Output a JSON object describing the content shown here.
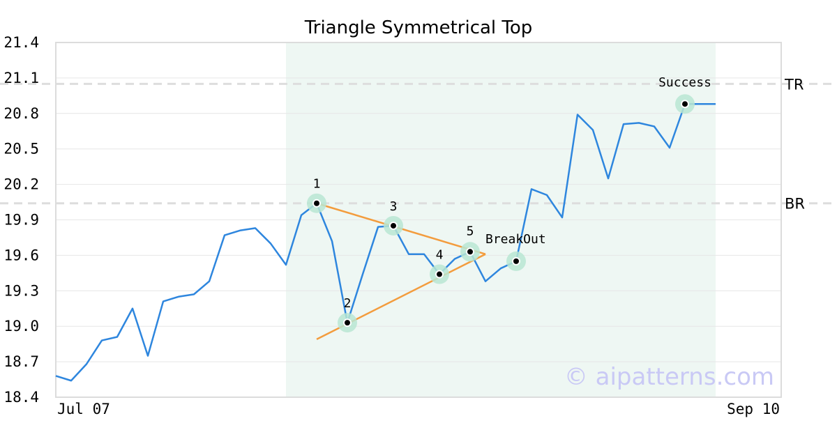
{
  "chart_data": {
    "type": "line",
    "title": "Triangle Symmetrical Top",
    "xlabel": "",
    "ylabel": "",
    "x_tick_labels": [
      "Jul 07",
      "Sep 10"
    ],
    "ylim": [
      18.4,
      21.4
    ],
    "yticks": [
      18.4,
      18.7,
      19.0,
      19.3,
      19.6,
      19.9,
      20.2,
      20.5,
      20.8,
      21.1,
      21.4
    ],
    "grid": true,
    "series": [
      {
        "values": [
          18.58,
          18.54,
          18.68,
          18.88,
          18.91,
          19.15,
          18.75,
          19.21,
          19.25,
          19.27,
          19.38,
          19.77,
          19.81,
          19.83,
          19.7,
          19.52,
          19.94,
          20.04,
          19.72,
          19.03,
          19.44,
          19.84,
          19.85,
          19.61,
          19.61,
          19.44,
          19.57,
          19.63,
          19.38,
          19.49,
          19.55,
          20.16,
          20.11,
          19.92,
          20.79,
          20.66,
          20.25,
          20.71,
          20.72,
          20.69,
          20.51,
          20.88,
          20.88,
          20.88
        ],
        "color": "#2e86de"
      }
    ],
    "shaded_range": {
      "from_index": 15,
      "to_index": 43,
      "color": "#eef7f3"
    },
    "levels": [
      {
        "label": "TR",
        "value": 21.05
      },
      {
        "label": "BR",
        "value": 20.04
      }
    ],
    "pattern_points": [
      {
        "label": "1",
        "index": 17,
        "value": 20.04
      },
      {
        "label": "2",
        "index": 19,
        "value": 19.03
      },
      {
        "label": "3",
        "index": 22,
        "value": 19.85
      },
      {
        "label": "4",
        "index": 25,
        "value": 19.44
      },
      {
        "label": "5",
        "index": 27,
        "value": 19.63
      },
      {
        "label": "BreakOut",
        "index": 30,
        "value": 19.55
      },
      {
        "label": "Success",
        "index": 41,
        "value": 20.88
      }
    ],
    "trend_lines": [
      {
        "from": [
          17,
          20.04
        ],
        "to": [
          28,
          19.61
        ],
        "color": "#f39c3d"
      },
      {
        "from": [
          17,
          18.89
        ],
        "to": [
          28,
          19.61
        ],
        "color": "#f39c3d"
      }
    ],
    "watermark": "© aipatterns.com"
  }
}
